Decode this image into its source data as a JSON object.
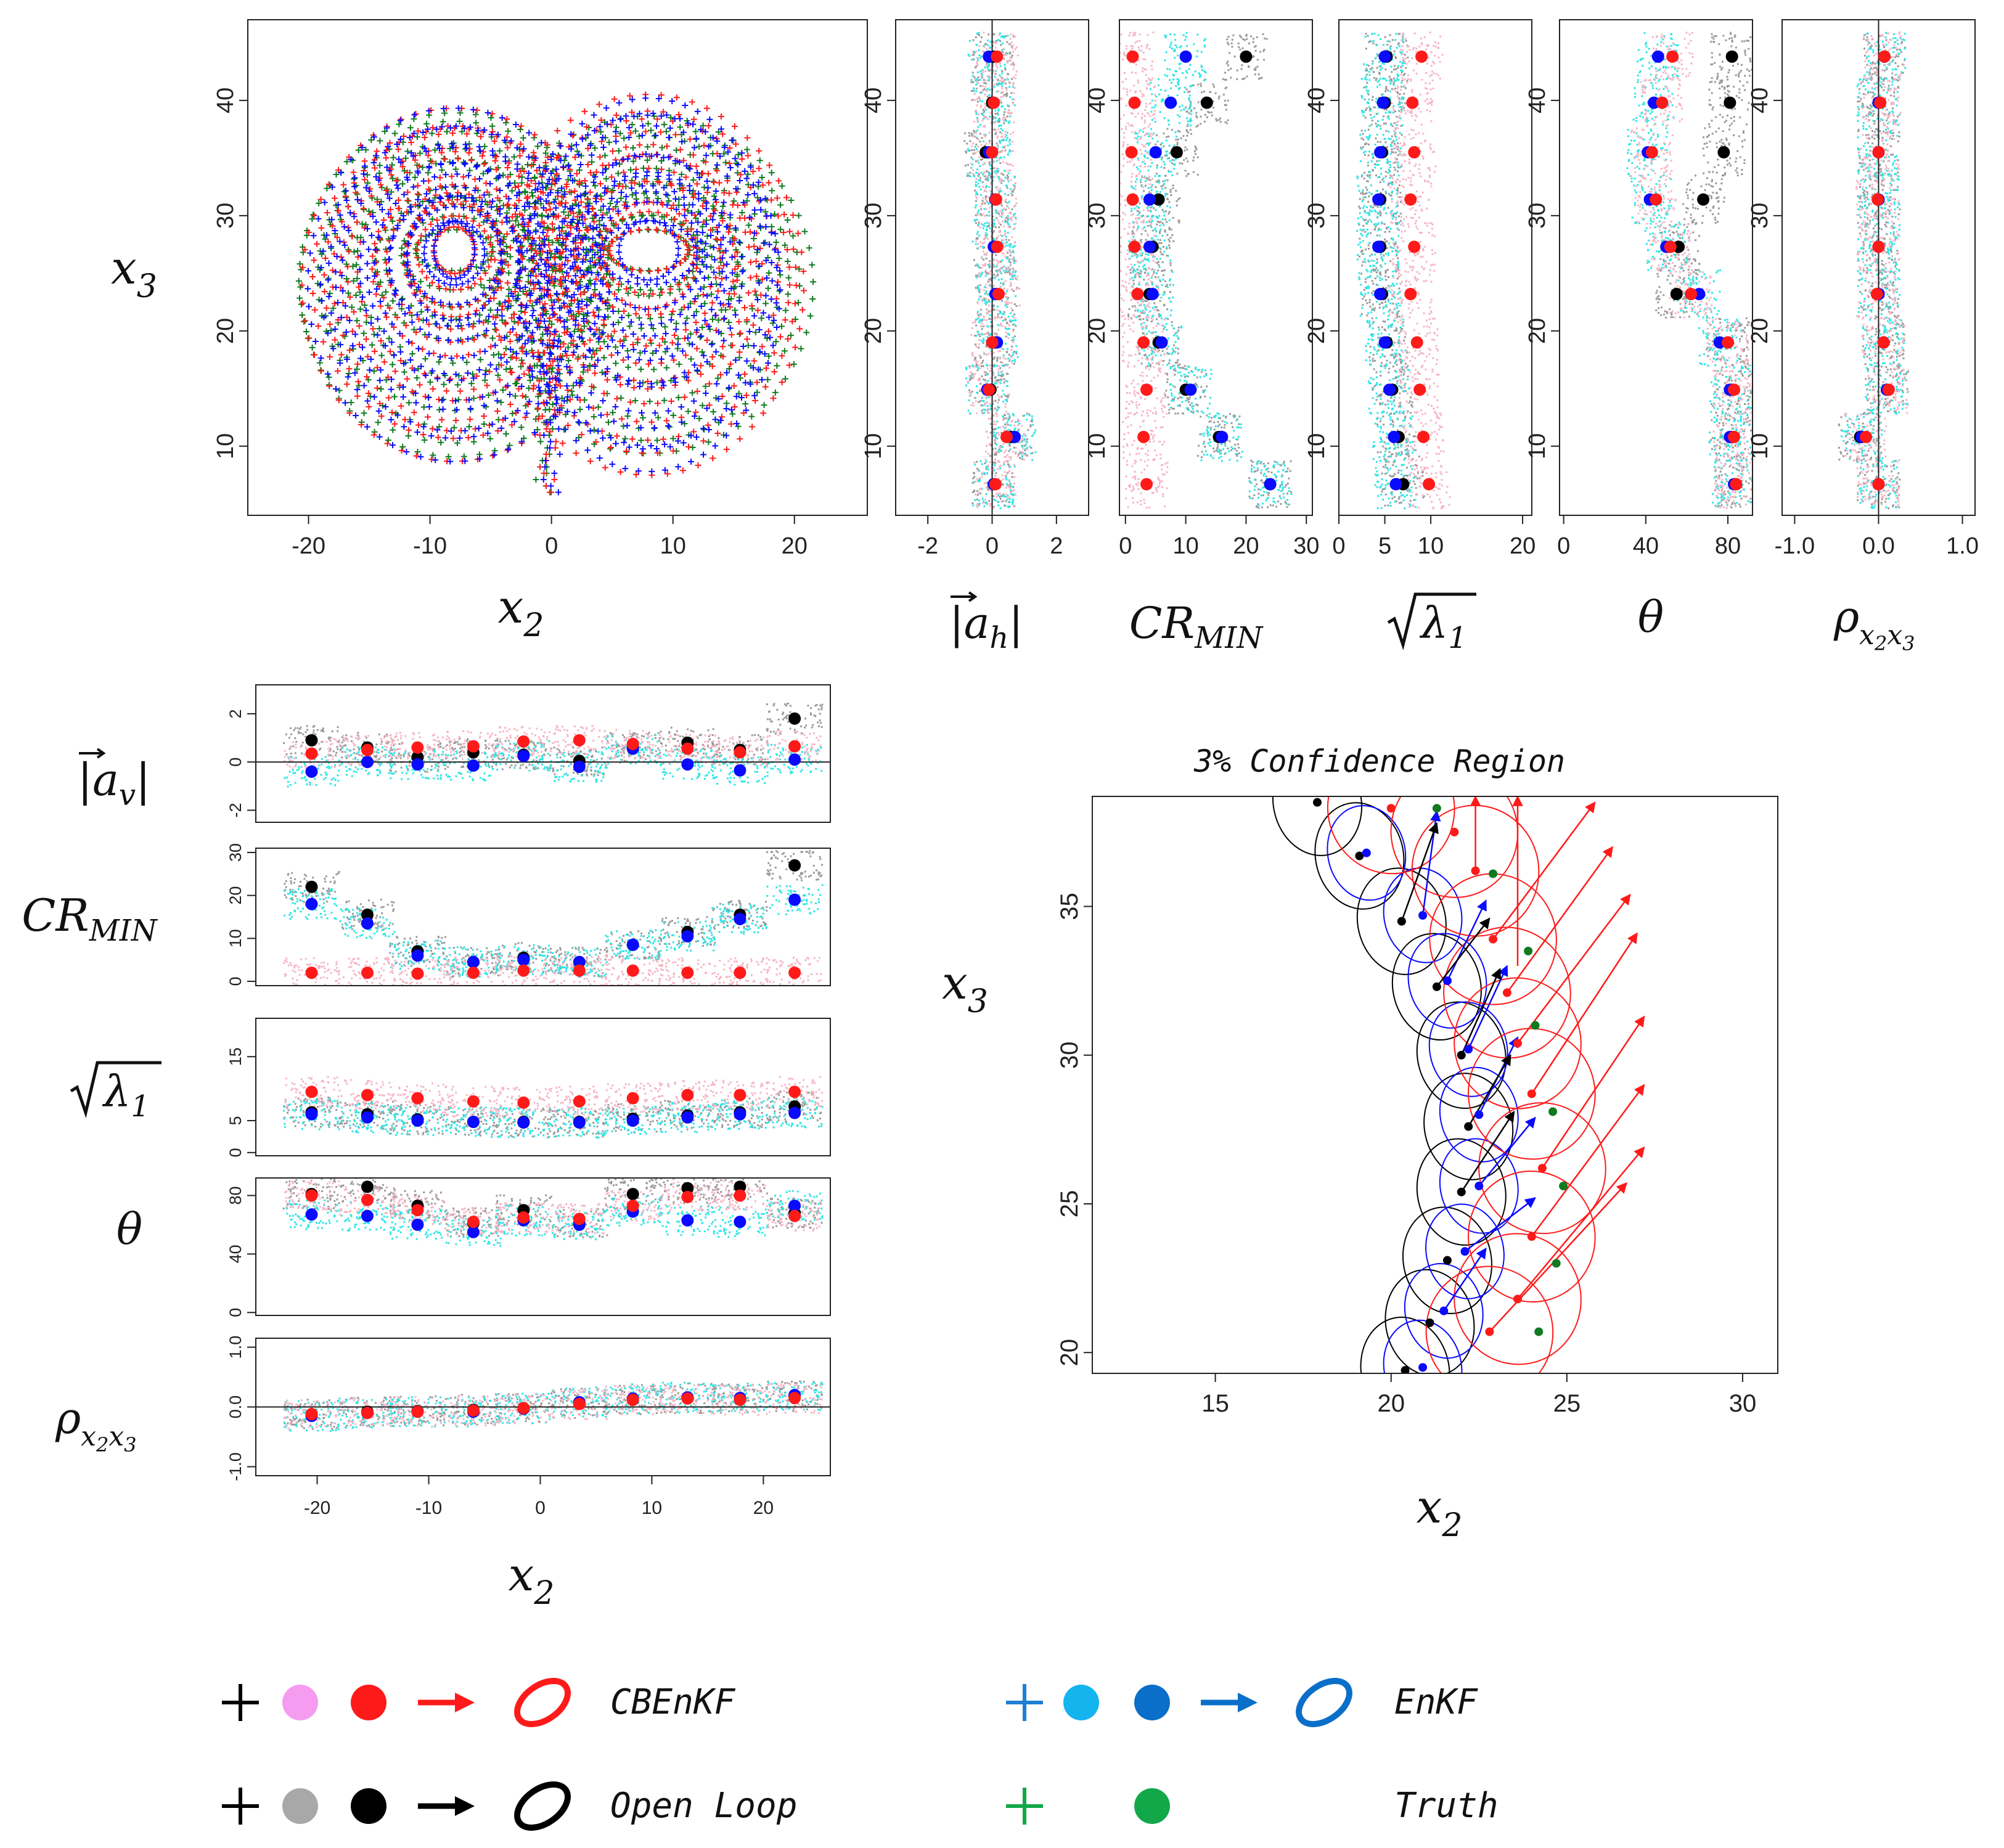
{
  "colors": {
    "cbenkf_cloud": "#f5b6c5",
    "cbenkf_point": "#ff1a1a",
    "enkf_cloud": "#2ee6e6",
    "enkf_point": "#0a0aff",
    "openloop_cloud": "#9a9a9a",
    "openloop_point": "#000000",
    "truth": "#0f7a1f",
    "legend_cbenkf_cloud": "#f59cf0",
    "legend_enkf_cloud": "#14b4ee",
    "legend_enkf_point": "#0a6fc8",
    "legend_enkf_plus": "#1f7fd4",
    "legend_truth": "#12a84a",
    "legend_openloop_cloud": "#a8a8a8"
  },
  "chart_data": [
    {
      "id": "attractor",
      "type": "scatter",
      "xlabel_main": "x",
      "xlabel_sub": "2",
      "ylabel_main": "x",
      "ylabel_sub": "3",
      "xlim": [
        -25,
        26
      ],
      "ylim": [
        4,
        47
      ],
      "xticks": [
        "-20",
        "-10",
        "0",
        "10",
        "20"
      ],
      "yticks": [
        "10",
        "20",
        "30",
        "40"
      ],
      "marker": "+",
      "series": [
        {
          "color": "truth",
          "lobes": [
            {
              "cx": -8,
              "cy": 27,
              "rx_range": [
                3,
                13
              ],
              "ry_range": [
                2,
                15
              ]
            },
            {
              "cx": 8,
              "cy": 27,
              "rx_range": [
                3,
                13
              ],
              "ry_range": [
                2,
                15
              ]
            }
          ]
        },
        {
          "color": "cbenkf_point",
          "lobes": [
            {
              "cx": -8,
              "cy": 27,
              "rx_range": [
                2,
                13
              ],
              "ry_range": [
                2,
                15
              ]
            },
            {
              "cx": 8,
              "cy": 27,
              "rx_range": [
                3,
                13
              ],
              "ry_range": [
                2,
                16
              ]
            }
          ]
        },
        {
          "color": "enkf_point",
          "lobes": [
            {
              "cx": -8,
              "cy": 27,
              "rx_range": [
                2,
                12
              ],
              "ry_range": [
                2,
                15
              ]
            },
            {
              "cx": 8,
              "cy": 27,
              "rx_range": [
                3,
                11
              ],
              "ry_range": [
                2,
                16
              ]
            }
          ]
        }
      ]
    },
    {
      "id": "ah",
      "type": "scatter",
      "xlabel": "|a_h|",
      "xlim": [
        -3,
        3
      ],
      "ylim": [
        4,
        47
      ],
      "xticks": [
        "-2",
        "0",
        "2"
      ],
      "yticks": [
        "10",
        "20",
        "30",
        "40"
      ],
      "refline": 0,
      "y": [
        43.8,
        39.8,
        35.5,
        31.4,
        27.3,
        23.2,
        19.0,
        14.9,
        10.8,
        6.7
      ],
      "cbenkf": [
        0.15,
        0.05,
        0.0,
        0.12,
        0.16,
        0.2,
        0.0,
        -0.1,
        0.45,
        0.1
      ],
      "enkf": [
        -0.1,
        0.05,
        -0.1,
        0.1,
        0.05,
        0.1,
        0.15,
        -0.15,
        0.7,
        0.05
      ],
      "openloop": [
        0.05,
        0.0,
        -0.2,
        0.1,
        0.1,
        0.15,
        0.1,
        -0.05,
        0.6,
        0.05
      ]
    },
    {
      "id": "cr_h",
      "type": "scatter",
      "xlabel": "CR_MIN",
      "xlim": [
        -1,
        31
      ],
      "ylim": [
        4,
        47
      ],
      "xticks": [
        "0",
        "10",
        "20",
        "30"
      ],
      "yticks": [
        "10",
        "20",
        "30",
        "40"
      ],
      "y": [
        43.8,
        39.8,
        35.5,
        31.4,
        27.3,
        23.2,
        19.0,
        14.9,
        10.8,
        6.7
      ],
      "cbenkf": [
        1.2,
        1.5,
        1.0,
        1.2,
        1.5,
        2.0,
        3.0,
        3.5,
        3.0,
        3.5
      ],
      "enkf": [
        10.0,
        7.5,
        5.0,
        4.0,
        4.0,
        4.5,
        6.0,
        10.8,
        16.0,
        24.0
      ],
      "openloop": [
        20.0,
        13.5,
        8.5,
        5.5,
        4.5,
        4.0,
        5.5,
        10.0,
        15.5,
        24.0
      ]
    },
    {
      "id": "lam_h",
      "type": "scatter",
      "xlabel": "sqrt(lambda_1)",
      "xlim": [
        0,
        21
      ],
      "ylim": [
        4,
        47
      ],
      "xticks": [
        "0",
        "5",
        "10",
        "20"
      ],
      "yticks": [
        "10",
        "20",
        "30",
        "40"
      ],
      "y": [
        43.8,
        39.8,
        35.5,
        31.4,
        27.3,
        23.2,
        19.0,
        14.9,
        10.8,
        6.7
      ],
      "cbenkf": [
        9.0,
        8.0,
        8.2,
        7.8,
        8.2,
        7.8,
        8.5,
        8.8,
        9.2,
        9.8
      ],
      "enkf": [
        5.0,
        4.8,
        4.5,
        4.3,
        4.3,
        4.5,
        5.0,
        5.5,
        6.0,
        6.2
      ],
      "openloop": [
        5.2,
        5.0,
        4.7,
        4.5,
        4.5,
        4.7,
        5.2,
        5.8,
        6.5,
        7.0
      ]
    },
    {
      "id": "theta_h",
      "type": "scatter",
      "xlabel": "theta",
      "xlim": [
        -2,
        92
      ],
      "ylim": [
        4,
        47
      ],
      "xticks": [
        "0",
        "40",
        "80"
      ],
      "yticks": [
        "10",
        "20",
        "30",
        "40"
      ],
      "y": [
        43.8,
        39.8,
        35.5,
        31.4,
        27.3,
        23.2,
        19.0,
        14.9,
        10.8,
        6.7
      ],
      "cbenkf": [
        53.0,
        48.0,
        43.0,
        45.0,
        52.0,
        62.0,
        80.0,
        83.0,
        83.0,
        84.0
      ],
      "enkf": [
        46.0,
        44.0,
        41.0,
        42.0,
        50.0,
        66.0,
        76.0,
        81.0,
        81.0,
        83.0
      ],
      "openloop": [
        82.0,
        81.0,
        78.0,
        68.0,
        56.0,
        55.0,
        80.0,
        82.0,
        82.0,
        84.0
      ]
    },
    {
      "id": "rho_h",
      "type": "scatter",
      "xlabel": "rho_x2x3",
      "xlim": [
        -1.15,
        1.15
      ],
      "ylim": [
        4,
        47
      ],
      "xticks": [
        "-1.0",
        "0.0",
        "1.0"
      ],
      "yticks": [
        "10",
        "20",
        "30",
        "40"
      ],
      "refline": 0,
      "y": [
        43.8,
        39.8,
        35.5,
        31.4,
        27.3,
        23.2,
        19.0,
        14.9,
        10.8,
        6.7
      ],
      "cbenkf": [
        0.07,
        0.02,
        0.0,
        -0.01,
        0.0,
        -0.02,
        0.06,
        0.12,
        -0.15,
        0.0
      ],
      "enkf": [
        0.07,
        0.0,
        0.0,
        0.0,
        0.0,
        0.0,
        0.06,
        0.1,
        -0.2,
        0.0
      ],
      "openloop": [
        0.07,
        0.0,
        0.0,
        0.0,
        0.0,
        0.0,
        0.06,
        0.1,
        -0.22,
        0.0
      ]
    },
    {
      "id": "av",
      "type": "scatter",
      "ylabel": "|a_v|",
      "xlim": [
        -25.5,
        26
      ],
      "ylim": [
        -2.5,
        3.2
      ],
      "xticks": [],
      "yticks": [
        "-2",
        "0",
        "2"
      ],
      "refline": 0,
      "x": [
        -20.5,
        -15.5,
        -11,
        -6,
        -1.5,
        3.5,
        8.3,
        13.2,
        17.9,
        22.8
      ],
      "cbenkf": [
        0.35,
        0.5,
        0.6,
        0.65,
        0.85,
        0.9,
        0.75,
        0.55,
        0.4,
        0.65
      ],
      "enkf": [
        -0.4,
        0.0,
        -0.1,
        -0.15,
        0.25,
        -0.2,
        0.55,
        -0.1,
        -0.35,
        0.1
      ],
      "openloop": [
        0.9,
        0.6,
        0.2,
        0.4,
        0.3,
        0.05,
        0.6,
        0.8,
        0.5,
        1.8
      ]
    },
    {
      "id": "cr_v",
      "type": "scatter",
      "ylabel": "CR_MIN",
      "xlim": [
        -25.5,
        26
      ],
      "ylim": [
        -1,
        31
      ],
      "xticks": [],
      "yticks": [
        "0",
        "10",
        "20",
        "30"
      ],
      "x": [
        -20.5,
        -15.5,
        -11,
        -6,
        -1.5,
        3.5,
        8.3,
        13.2,
        17.9,
        22.8
      ],
      "cbenkf": [
        2.0,
        2.0,
        1.8,
        2.0,
        2.5,
        2.5,
        2.5,
        2.0,
        2.0,
        2.0
      ],
      "enkf": [
        18.0,
        13.5,
        6.0,
        4.5,
        5.0,
        4.5,
        8.5,
        10.5,
        14.5,
        19.0
      ],
      "openloop": [
        22.0,
        15.5,
        7.0,
        4.5,
        5.5,
        4.5,
        8.5,
        11.5,
        15.5,
        27.0
      ]
    },
    {
      "id": "lam_v",
      "type": "scatter",
      "ylabel": "sqrt(lambda_1)",
      "xlim": [
        -25.5,
        26
      ],
      "ylim": [
        -0.5,
        21
      ],
      "xticks": [],
      "yticks": [
        "0",
        "5",
        "15"
      ],
      "x": [
        -20.5,
        -15.5,
        -11,
        -6,
        -1.5,
        3.5,
        8.3,
        13.2,
        17.9,
        22.8
      ],
      "cbenkf": [
        9.5,
        9.0,
        8.5,
        8.0,
        7.8,
        8.0,
        8.5,
        9.0,
        9.0,
        9.5
      ],
      "enkf": [
        6.0,
        5.5,
        5.0,
        4.8,
        4.7,
        4.7,
        5.0,
        5.5,
        6.0,
        6.2
      ],
      "openloop": [
        6.3,
        6.0,
        5.2,
        4.8,
        4.8,
        4.8,
        5.3,
        5.8,
        6.3,
        7.2
      ]
    },
    {
      "id": "theta_v",
      "type": "scatter",
      "ylabel": "theta",
      "xlim": [
        -25.5,
        26
      ],
      "ylim": [
        -2,
        92
      ],
      "xticks": [],
      "yticks": [
        "0",
        "40",
        "80"
      ],
      "x": [
        -20.5,
        -15.5,
        -11,
        -6,
        -1.5,
        3.5,
        8.3,
        13.2,
        17.9,
        22.8
      ],
      "cbenkf": [
        80.0,
        77.0,
        70.0,
        62.0,
        65.0,
        64.0,
        73.0,
        79.0,
        80.0,
        66.0
      ],
      "enkf": [
        67.0,
        66.0,
        60.0,
        55.0,
        63.0,
        60.0,
        69.0,
        63.0,
        62.0,
        73.0
      ],
      "openloop": [
        81.0,
        86.0,
        73.0,
        61.0,
        70.0,
        61.0,
        81.0,
        85.0,
        86.0,
        68.0
      ]
    },
    {
      "id": "rho_v",
      "type": "scatter",
      "ylabel": "rho_x2x3",
      "xlabel_main": "x",
      "xlabel_sub": "2",
      "xlim": [
        -25.5,
        26
      ],
      "ylim": [
        -1.15,
        1.15
      ],
      "xticks": [
        "-20",
        "-10",
        "0",
        "10",
        "20"
      ],
      "yticks": [
        "-1.0",
        "0.0",
        "1.0"
      ],
      "refline": 0,
      "x": [
        -20.5,
        -15.5,
        -11,
        -6,
        -1.5,
        3.5,
        8.3,
        13.2,
        17.9,
        22.8
      ],
      "cbenkf": [
        -0.12,
        -0.1,
        -0.08,
        -0.06,
        -0.02,
        0.05,
        0.12,
        0.14,
        0.12,
        0.15
      ],
      "enkf": [
        -0.15,
        -0.1,
        -0.08,
        -0.08,
        -0.03,
        0.08,
        0.14,
        0.16,
        0.15,
        0.2
      ],
      "openloop": [
        -0.12,
        -0.08,
        -0.07,
        -0.05,
        -0.02,
        0.06,
        0.12,
        0.15,
        0.13,
        0.18
      ]
    },
    {
      "id": "zoom",
      "type": "scatter",
      "title": "3% Confidence Region",
      "xlabel_main": "x",
      "xlabel_sub": "2",
      "ylabel_main": "x",
      "ylabel_sub": "3",
      "xlim": [
        11.5,
        31
      ],
      "ylim": [
        19.3,
        38.7
      ],
      "xticks": [
        "15",
        "20",
        "25",
        "30"
      ],
      "yticks": [
        "20",
        "25",
        "30",
        "35"
      ],
      "truth_points": [
        [
          21.3,
          38.3
        ],
        [
          22.9,
          36.1
        ],
        [
          23.9,
          33.5
        ],
        [
          24.1,
          31.0
        ],
        [
          24.6,
          28.1
        ],
        [
          24.9,
          25.6
        ],
        [
          24.7,
          23.0
        ],
        [
          24.2,
          20.7
        ]
      ],
      "cbenkf_points": [
        [
          20.0,
          38.3
        ],
        [
          21.8,
          37.5
        ],
        [
          22.4,
          36.2
        ],
        [
          22.9,
          33.9
        ],
        [
          23.3,
          32.1
        ],
        [
          23.6,
          30.4
        ],
        [
          24.0,
          28.7
        ],
        [
          24.3,
          26.2
        ],
        [
          24.0,
          23.9
        ],
        [
          23.6,
          21.8
        ],
        [
          22.8,
          20.7
        ]
      ],
      "enkf_points": [
        [
          19.3,
          36.8
        ],
        [
          20.9,
          34.7
        ],
        [
          21.6,
          32.5
        ],
        [
          22.2,
          30.2
        ],
        [
          22.5,
          28.0
        ],
        [
          22.5,
          25.6
        ],
        [
          22.1,
          23.4
        ],
        [
          21.5,
          21.4
        ],
        [
          20.9,
          19.5
        ]
      ],
      "openloop_points": [
        [
          17.9,
          38.5
        ],
        [
          19.1,
          36.7
        ],
        [
          20.3,
          34.5
        ],
        [
          21.3,
          32.3
        ],
        [
          22.0,
          30.0
        ],
        [
          22.2,
          27.6
        ],
        [
          22.0,
          25.4
        ],
        [
          21.6,
          23.1
        ],
        [
          21.1,
          21.0
        ],
        [
          20.4,
          19.4
        ]
      ],
      "cbenkf_arrows": [
        [
          22.9,
          33.9,
          25.8,
          38.5
        ],
        [
          23.3,
          32.1,
          26.3,
          37.0
        ],
        [
          23.6,
          30.4,
          26.8,
          35.4
        ],
        [
          24.0,
          28.7,
          27.0,
          34.1
        ],
        [
          24.3,
          26.2,
          27.2,
          31.3
        ],
        [
          24.0,
          23.9,
          27.2,
          29.0
        ],
        [
          23.6,
          21.8,
          27.2,
          26.9
        ],
        [
          22.8,
          20.7,
          26.7,
          25.7
        ],
        [
          22.4,
          36.2,
          22.4,
          38.7
        ],
        [
          23.6,
          33.0,
          23.6,
          38.7
        ]
      ],
      "enkf_arrows": [
        [
          21.6,
          32.5,
          22.7,
          35.2
        ],
        [
          22.2,
          30.2,
          23.3,
          33.0
        ],
        [
          22.5,
          28.0,
          23.6,
          30.6
        ],
        [
          22.5,
          25.6,
          24.1,
          27.9
        ],
        [
          22.1,
          23.4,
          24.1,
          25.2
        ],
        [
          21.5,
          21.4,
          22.7,
          23.5
        ],
        [
          20.9,
          34.7,
          21.3,
          38.2
        ]
      ],
      "openloop_arrows": [
        [
          21.3,
          32.3,
          22.8,
          34.6
        ],
        [
          22.0,
          30.0,
          23.1,
          32.9
        ],
        [
          22.2,
          27.6,
          23.4,
          30.0
        ],
        [
          22.0,
          25.4,
          23.5,
          28.1
        ],
        [
          20.3,
          34.5,
          21.3,
          37.8
        ]
      ]
    }
  ],
  "legend": [
    {
      "name": "CBEnKF",
      "key": "cbenkf"
    },
    {
      "name": "EnKF",
      "key": "enkf"
    },
    {
      "name": "Open Loop",
      "key": "openloop"
    },
    {
      "name": "Truth",
      "key": "truth"
    }
  ]
}
